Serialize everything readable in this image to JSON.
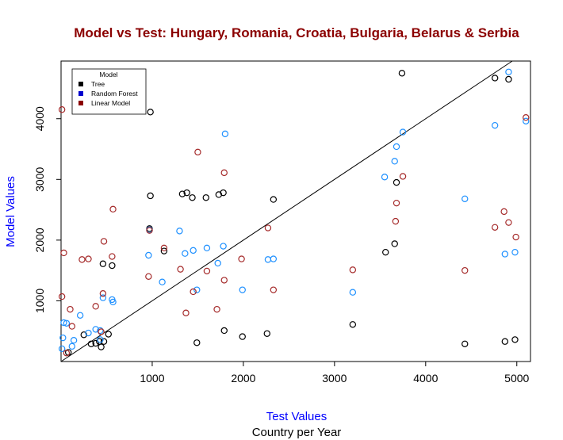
{
  "chart_data": {
    "type": "scatter",
    "title": "Model vs Test:  Hungary, Romania, Croatia, Bulgaria, Belarus & Serbia",
    "title_color": "#8b0000",
    "xlabel": "Test Values",
    "xlabel_sub": "Country per Year",
    "ylabel": "Model Values",
    "axis_label_color": "#0000ff",
    "xlim": [
      0,
      5150
    ],
    "ylim": [
      0,
      4950
    ],
    "xticks": [
      1000,
      2000,
      3000,
      4000,
      5000
    ],
    "yticks": [
      1000,
      2000,
      3000,
      4000
    ],
    "grid": false,
    "reference_line": {
      "slope": 1,
      "intercept": 0,
      "color": "#000000"
    },
    "legend": {
      "title": "Model",
      "position": "top-left",
      "entries": [
        {
          "label": "Tree",
          "color": "#000000"
        },
        {
          "label": "Random Forest",
          "color": "#0000cd"
        },
        {
          "label": "Linear Model",
          "color": "#8b0000"
        }
      ]
    },
    "series": [
      {
        "name": "Tree",
        "color": "#000000",
        "points": [
          [
            3740,
            4750
          ],
          [
            4760,
            4670
          ],
          [
            4910,
            4650
          ],
          [
            980,
            4110
          ],
          [
            1330,
            2760
          ],
          [
            1380,
            2780
          ],
          [
            1440,
            2700
          ],
          [
            1590,
            2700
          ],
          [
            1730,
            2750
          ],
          [
            1780,
            2780
          ],
          [
            980,
            2730
          ],
          [
            2330,
            2670
          ],
          [
            3680,
            2950
          ],
          [
            970,
            2190
          ],
          [
            1130,
            1820
          ],
          [
            460,
            1610
          ],
          [
            560,
            1580
          ],
          [
            3560,
            1800
          ],
          [
            3660,
            1940
          ],
          [
            1790,
            510
          ],
          [
            1990,
            410
          ],
          [
            2260,
            460
          ],
          [
            1490,
            310
          ],
          [
            3200,
            610
          ],
          [
            4430,
            290
          ],
          [
            4870,
            330
          ],
          [
            4980,
            360
          ],
          [
            440,
            240
          ],
          [
            380,
            300
          ],
          [
            330,
            290
          ],
          [
            420,
            330
          ],
          [
            520,
            450
          ],
          [
            470,
            330
          ],
          [
            250,
            440
          ],
          [
            80,
            150
          ]
        ]
      },
      {
        "name": "Random Forest",
        "color": "#1e90ff",
        "points": [
          [
            4910,
            4770
          ],
          [
            5100,
            3960
          ],
          [
            4760,
            3890
          ],
          [
            3750,
            3780
          ],
          [
            3680,
            3540
          ],
          [
            3660,
            3300
          ],
          [
            3550,
            3040
          ],
          [
            1800,
            3750
          ],
          [
            4430,
            2680
          ],
          [
            970,
            2170
          ],
          [
            1300,
            2150
          ],
          [
            960,
            1750
          ],
          [
            1360,
            1780
          ],
          [
            1450,
            1830
          ],
          [
            1600,
            1870
          ],
          [
            1780,
            1900
          ],
          [
            1720,
            1620
          ],
          [
            1110,
            1310
          ],
          [
            1490,
            1180
          ],
          [
            1990,
            1180
          ],
          [
            2270,
            1680
          ],
          [
            2330,
            1690
          ],
          [
            3200,
            1140
          ],
          [
            4870,
            1770
          ],
          [
            4980,
            1800
          ],
          [
            560,
            1020
          ],
          [
            570,
            980
          ],
          [
            460,
            1050
          ],
          [
            210,
            760
          ],
          [
            30,
            640
          ],
          [
            60,
            630
          ],
          [
            380,
            530
          ],
          [
            430,
            510
          ],
          [
            140,
            350
          ],
          [
            120,
            250
          ],
          [
            430,
            360
          ],
          [
            300,
            470
          ],
          [
            20,
            390
          ],
          [
            10,
            210
          ]
        ]
      },
      {
        "name": "Linear Model",
        "color": "#a52a2a",
        "points": [
          [
            10,
            4150
          ],
          [
            5100,
            4020
          ],
          [
            1500,
            3450
          ],
          [
            1790,
            3110
          ],
          [
            3750,
            3050
          ],
          [
            570,
            2510
          ],
          [
            970,
            2160
          ],
          [
            3680,
            2610
          ],
          [
            3670,
            2310
          ],
          [
            4860,
            2470
          ],
          [
            4910,
            2290
          ],
          [
            4760,
            2210
          ],
          [
            4990,
            2050
          ],
          [
            2270,
            2200
          ],
          [
            1130,
            1870
          ],
          [
            470,
            1980
          ],
          [
            560,
            1730
          ],
          [
            230,
            1680
          ],
          [
            300,
            1690
          ],
          [
            30,
            1790
          ],
          [
            1980,
            1690
          ],
          [
            960,
            1400
          ],
          [
            1310,
            1520
          ],
          [
            1600,
            1490
          ],
          [
            1790,
            1340
          ],
          [
            1450,
            1150
          ],
          [
            1710,
            860
          ],
          [
            1370,
            800
          ],
          [
            2330,
            1180
          ],
          [
            3200,
            1510
          ],
          [
            4430,
            1500
          ],
          [
            10,
            1070
          ],
          [
            460,
            1120
          ],
          [
            380,
            910
          ],
          [
            100,
            860
          ],
          [
            120,
            580
          ],
          [
            440,
            490
          ],
          [
            60,
            140
          ]
        ]
      }
    ]
  }
}
